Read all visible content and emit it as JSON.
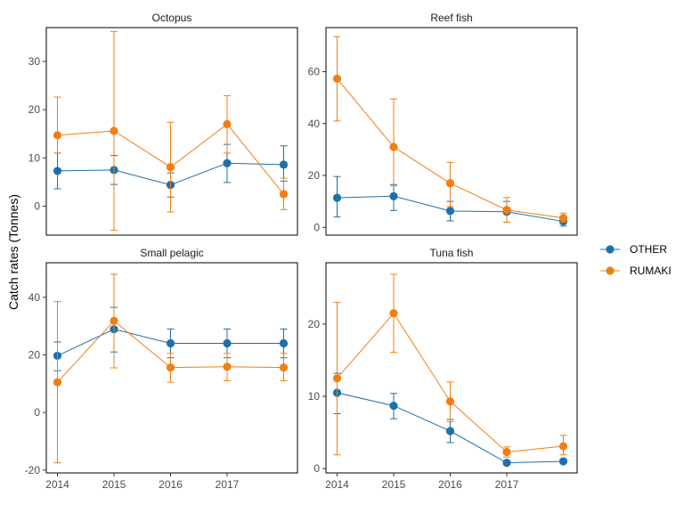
{
  "chart_data": {
    "type": "line",
    "ylabel": "Catch rates (Tonnes)",
    "x": [
      2014,
      2015,
      2016,
      2017,
      2018
    ],
    "x_tick_labels": [
      "2014",
      "2015",
      "2016",
      "2017"
    ],
    "legend": {
      "position": "right",
      "entries": [
        {
          "name": "OTHER",
          "color": "#1f6fa8"
        },
        {
          "name": "RUMAKI",
          "color": "#f07f13"
        }
      ]
    },
    "panels": [
      {
        "title": "Octopus",
        "ylim": [
          -6,
          37
        ],
        "yticks": [
          0,
          10,
          20,
          30
        ],
        "series": [
          {
            "name": "OTHER",
            "values": [
              7.3,
              7.5,
              4.4,
              8.9,
              8.6
            ],
            "err_low": [
              3.6,
              4.5,
              1.9,
              4.9,
              5.2
            ],
            "err_high": [
              11.0,
              10.5,
              6.9,
              12.8,
              12.5
            ]
          },
          {
            "name": "RUMAKI",
            "values": [
              14.7,
              15.6,
              8.1,
              17.0,
              2.5
            ],
            "err_low": [
              11.0,
              -5.0,
              -1.2,
              11.0,
              -0.7
            ],
            "err_high": [
              22.6,
              36.2,
              17.4,
              22.9,
              5.8
            ]
          }
        ]
      },
      {
        "title": "Reef fish",
        "ylim": [
          -3,
          77
        ],
        "yticks": [
          0,
          20,
          40,
          60
        ],
        "series": [
          {
            "name": "OTHER",
            "values": [
              11.4,
              12.0,
              6.3,
              6.0,
              2.3
            ],
            "err_low": [
              4.0,
              6.5,
              2.5,
              2.0,
              0.5
            ],
            "err_high": [
              19.6,
              16.5,
              10.0,
              10.0,
              4.0
            ]
          },
          {
            "name": "RUMAKI",
            "values": [
              57.3,
              31.0,
              17.0,
              6.7,
              3.6
            ],
            "err_low": [
              41.0,
              16.0,
              8.0,
              2.0,
              2.0
            ],
            "err_high": [
              73.5,
              49.5,
              25.0,
              11.5,
              5.5
            ]
          }
        ]
      },
      {
        "title": "Small pelagic",
        "ylim": [
          -21,
          52
        ],
        "yticks": [
          -20,
          0,
          20,
          40
        ],
        "series": [
          {
            "name": "OTHER",
            "values": [
              19.7,
              28.9,
              24.0,
              24.0,
              24.0
            ],
            "err_low": [
              14.5,
              21.0,
              19.0,
              19.0,
              19.0
            ],
            "err_high": [
              24.5,
              36.5,
              29.0,
              29.0,
              29.0
            ]
          },
          {
            "name": "RUMAKI",
            "values": [
              10.5,
              31.8,
              15.6,
              15.9,
              15.6
            ],
            "err_low": [
              -17.5,
              15.5,
              10.5,
              11.0,
              11.0
            ],
            "err_high": [
              38.5,
              48.0,
              20.5,
              20.5,
              20.5
            ]
          }
        ]
      },
      {
        "title": "Tuna fish",
        "ylim": [
          -0.6,
          28.5
        ],
        "yticks": [
          0,
          10,
          20
        ],
        "series": [
          {
            "name": "OTHER",
            "values": [
              10.5,
              8.7,
              5.2,
              0.8,
              1.0
            ],
            "err_low": [
              7.6,
              6.9,
              3.6,
              0.6,
              0.8
            ],
            "err_high": [
              13.2,
              10.4,
              6.8,
              1.0,
              1.3
            ]
          },
          {
            "name": "RUMAKI",
            "values": [
              12.5,
              21.5,
              9.3,
              2.3,
              3.1
            ],
            "err_low": [
              1.9,
              16.1,
              6.5,
              1.6,
              1.9
            ],
            "err_high": [
              23.0,
              26.9,
              12.0,
              3.0,
              4.6
            ]
          }
        ]
      }
    ]
  }
}
